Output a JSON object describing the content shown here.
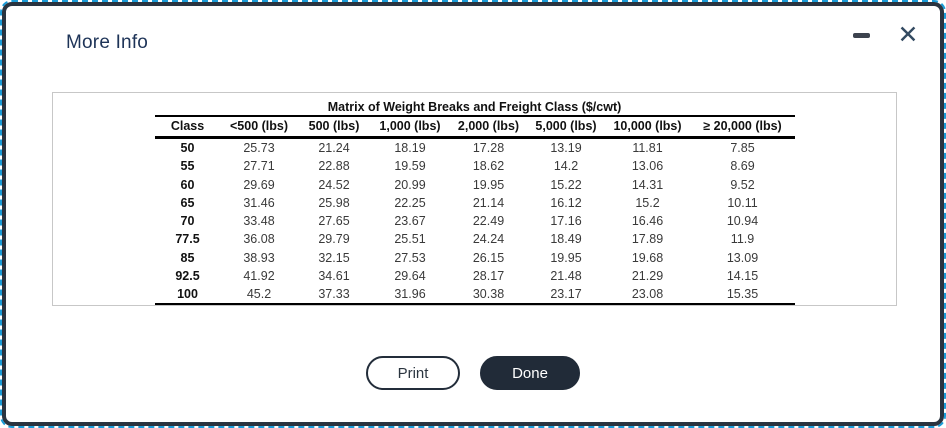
{
  "window": {
    "title": "More Info"
  },
  "icons": {
    "minimize": "minus-bar",
    "close_glyph": "✕"
  },
  "table": {
    "title": "Matrix of Weight Breaks and Freight Class ($/cwt)",
    "columns": [
      "Class",
      "<500 (lbs)",
      "500 (lbs)",
      "1,000 (lbs)",
      "2,000 (lbs)",
      "5,000 (lbs)",
      "10,000 (lbs)",
      "≥ 20,000 (lbs)"
    ],
    "rows": [
      {
        "class": "50",
        "values": [
          "25.73",
          "21.24",
          "18.19",
          "17.28",
          "13.19",
          "11.81",
          "7.85"
        ]
      },
      {
        "class": "55",
        "values": [
          "27.71",
          "22.88",
          "19.59",
          "18.62",
          "14.2",
          "13.06",
          "8.69"
        ]
      },
      {
        "class": "60",
        "values": [
          "29.69",
          "24.52",
          "20.99",
          "19.95",
          "15.22",
          "14.31",
          "9.52"
        ]
      },
      {
        "class": "65",
        "values": [
          "31.46",
          "25.98",
          "22.25",
          "21.14",
          "16.12",
          "15.2",
          "10.11"
        ]
      },
      {
        "class": "70",
        "values": [
          "33.48",
          "27.65",
          "23.67",
          "22.49",
          "17.16",
          "16.46",
          "10.94"
        ]
      },
      {
        "class": "77.5",
        "values": [
          "36.08",
          "29.79",
          "25.51",
          "24.24",
          "18.49",
          "17.89",
          "11.9"
        ]
      },
      {
        "class": "85",
        "values": [
          "38.93",
          "32.15",
          "27.53",
          "26.15",
          "19.95",
          "19.68",
          "13.09"
        ]
      },
      {
        "class": "92.5",
        "values": [
          "41.92",
          "34.61",
          "29.64",
          "28.17",
          "21.48",
          "21.29",
          "14.15"
        ]
      },
      {
        "class": "100",
        "values": [
          "45.2",
          "37.33",
          "31.96",
          "30.38",
          "23.17",
          "23.08",
          "15.35"
        ]
      }
    ]
  },
  "buttons": {
    "print": "Print",
    "done": "Done"
  },
  "colors": {
    "dialog_border": "#2a3440",
    "focus_outline_blue": "#1b9cd8",
    "title_text": "#1d3357",
    "panel_border": "#c7c7c7",
    "done_button_bg": "#212b38",
    "print_button_border": "#232d3a",
    "close_icon": "#334a61",
    "minimize_icon": "#3d434e"
  }
}
